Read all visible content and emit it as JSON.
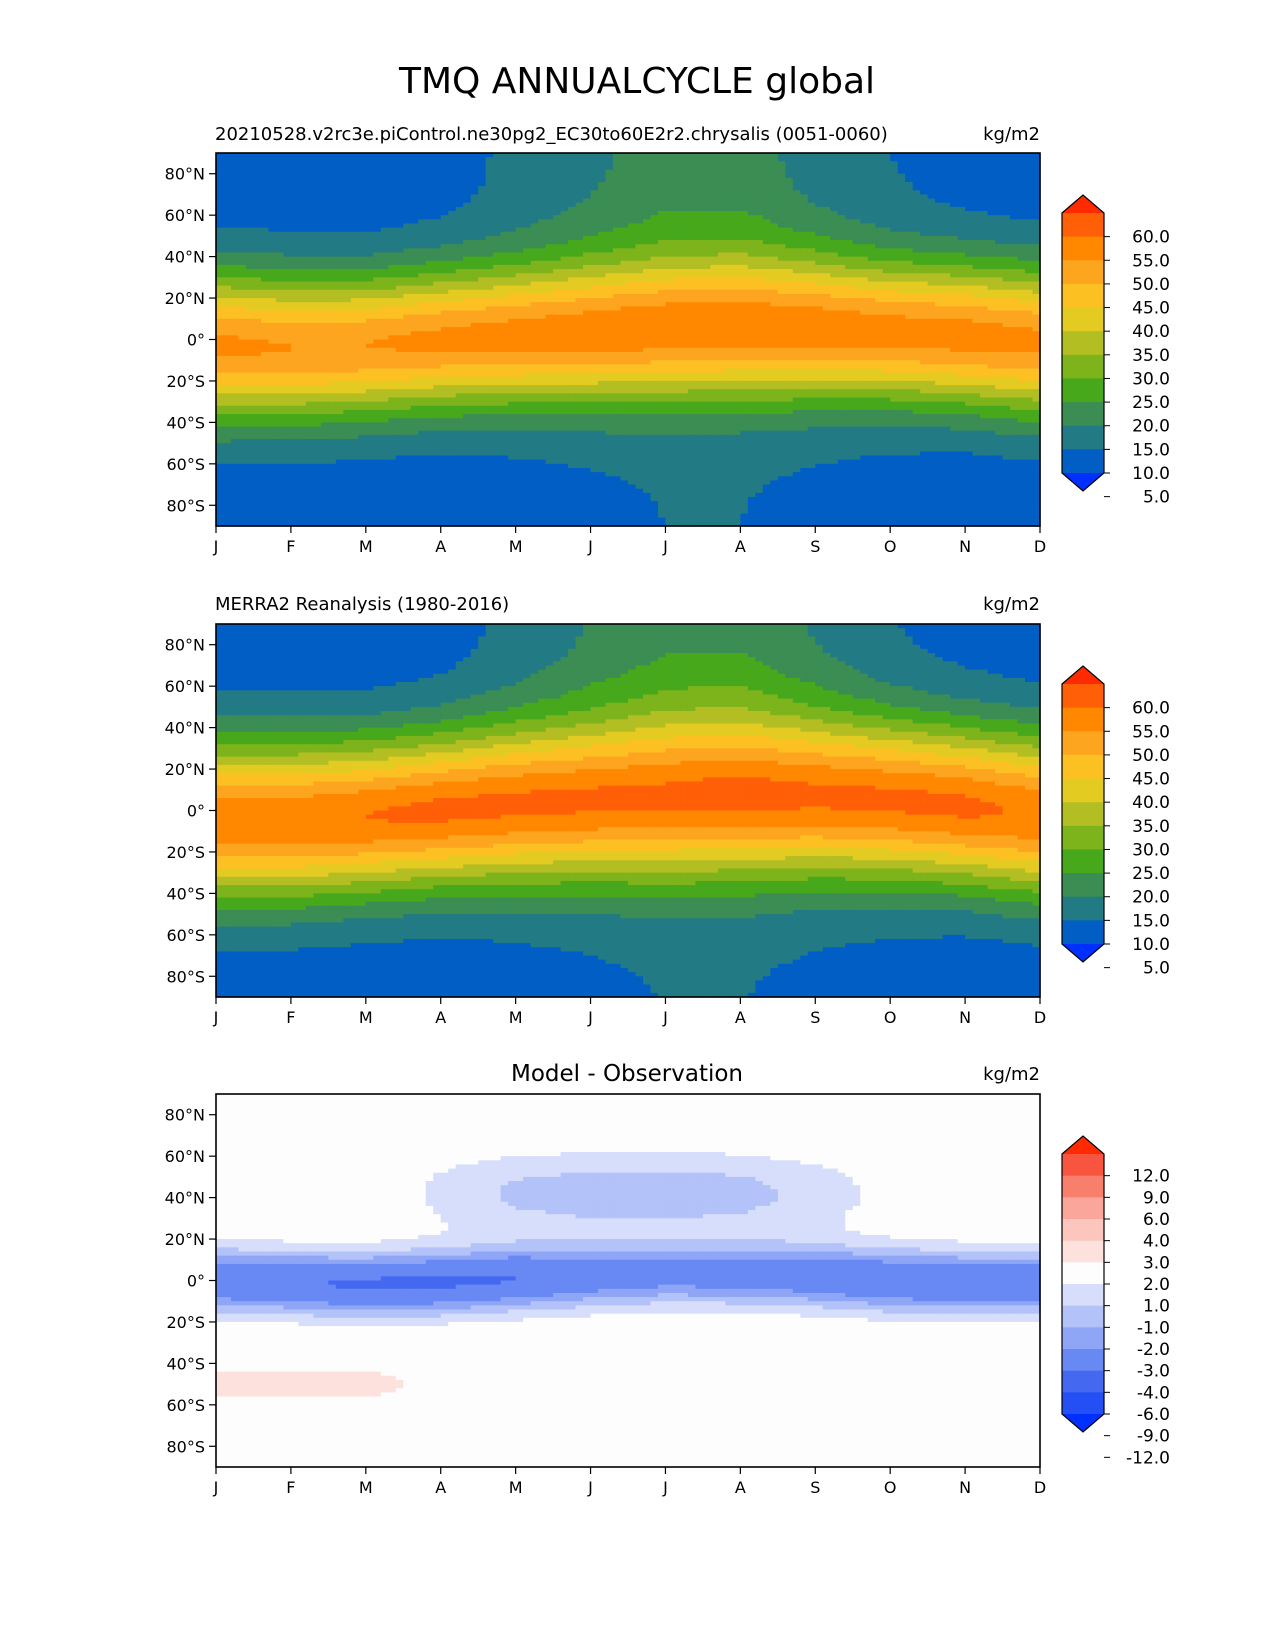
{
  "figure": {
    "title": "TMQ ANNUALCYCLE global"
  },
  "chart_data": [
    {
      "type": "heatmap",
      "panel": "model",
      "title_left": "20210528.v2rc3e.piControl.ne30pg2_EC30to60E2r2.chrysalis (0051-0060)",
      "title_center": "",
      "units": "kg/m2",
      "x": [
        "J",
        "F",
        "M",
        "A",
        "M",
        "J",
        "J",
        "A",
        "S",
        "O",
        "N",
        "D"
      ],
      "ylim": [
        -90,
        90
      ],
      "yticks": [
        80,
        60,
        40,
        20,
        0,
        -20,
        -40,
        -60,
        -80
      ],
      "ytick_labels": [
        "80°N",
        "60°N",
        "40°N",
        "20°N",
        "0°",
        "20°S",
        "40°S",
        "60°S",
        "80°S"
      ],
      "levels": [
        0,
        5,
        10,
        15,
        20,
        25,
        30,
        35,
        40,
        45,
        50,
        55,
        60
      ],
      "colorbar_labels": [
        "60.0",
        "55.0",
        "50.0",
        "45.0",
        "40.0",
        "35.0",
        "30.0",
        "25.0",
        "20.0",
        "15.0",
        "10.0",
        "5.0"
      ],
      "colors": [
        "#0030ff",
        "#005ec4",
        "#227b84",
        "#3b8d54",
        "#47a81c",
        "#7db31b",
        "#b3be22",
        "#e3cb22",
        "#fcc023",
        "#fea520",
        "#ff8800",
        "#ff5f07",
        "#ff2a00"
      ],
      "field": "climatology",
      "equator_peak": [
        46,
        45,
        45,
        46,
        47,
        48,
        49,
        49,
        48,
        47,
        47,
        46
      ],
      "itcz_lat": [
        -3,
        -4,
        -3,
        0,
        2,
        4,
        6,
        7,
        6,
        4,
        2,
        -1
      ],
      "lat_halfwidth": [
        46,
        45,
        44,
        44,
        44,
        45,
        46,
        46,
        45,
        44,
        45,
        46
      ],
      "polar_floor": [
        2,
        2,
        2,
        2,
        3,
        4,
        5,
        5,
        4,
        3,
        2,
        2
      ],
      "north_floor": [
        2,
        2,
        2,
        3,
        6,
        9,
        12,
        12,
        8,
        5,
        3,
        2
      ]
    },
    {
      "type": "heatmap",
      "panel": "obs",
      "title_left": "MERRA2 Reanalysis (1980-2016)",
      "title_center": "",
      "units": "kg/m2",
      "x": [
        "J",
        "F",
        "M",
        "A",
        "M",
        "J",
        "J",
        "A",
        "S",
        "O",
        "N",
        "D"
      ],
      "ylim": [
        -90,
        90
      ],
      "yticks": [
        80,
        60,
        40,
        20,
        0,
        -20,
        -40,
        -60,
        -80
      ],
      "ytick_labels": [
        "80°N",
        "60°N",
        "40°N",
        "20°N",
        "0°",
        "20°S",
        "40°S",
        "60°S",
        "80°S"
      ],
      "levels": [
        0,
        5,
        10,
        15,
        20,
        25,
        30,
        35,
        40,
        45,
        50,
        55,
        60
      ],
      "colorbar_labels": [
        "60.0",
        "55.0",
        "50.0",
        "45.0",
        "40.0",
        "35.0",
        "30.0",
        "25.0",
        "20.0",
        "15.0",
        "10.0",
        "5.0"
      ],
      "colors": [
        "#0030ff",
        "#005ec4",
        "#227b84",
        "#3b8d54",
        "#47a81c",
        "#7db31b",
        "#b3be22",
        "#e3cb22",
        "#fcc023",
        "#fea520",
        "#ff8800",
        "#ff5f07",
        "#ff2a00"
      ],
      "field": "climatology",
      "equator_peak": [
        48,
        49,
        50,
        51,
        51,
        51,
        51,
        52,
        51,
        51,
        51,
        49
      ],
      "itcz_lat": [
        -5,
        -5,
        -3,
        0,
        3,
        5,
        7,
        8,
        7,
        5,
        2,
        -2
      ],
      "lat_halfwidth": [
        50,
        49,
        48,
        48,
        49,
        50,
        52,
        52,
        50,
        49,
        49,
        50
      ],
      "polar_floor": [
        2,
        2,
        2,
        2,
        3,
        4,
        5,
        5,
        4,
        3,
        2,
        2
      ],
      "north_floor": [
        2,
        2,
        2,
        3,
        6,
        10,
        13,
        13,
        9,
        5,
        3,
        2
      ]
    },
    {
      "type": "heatmap",
      "panel": "diff",
      "title_left": "",
      "title_center": "Model - Observation",
      "units": "kg/m2",
      "x": [
        "J",
        "F",
        "M",
        "A",
        "M",
        "J",
        "J",
        "A",
        "S",
        "O",
        "N",
        "D"
      ],
      "ylim": [
        -90,
        90
      ],
      "yticks": [
        80,
        60,
        40,
        20,
        0,
        -20,
        -40,
        -60,
        -80
      ],
      "ytick_labels": [
        "80°N",
        "60°N",
        "40°N",
        "20°N",
        "0°",
        "20°S",
        "40°S",
        "60°S",
        "80°S"
      ],
      "levels": [
        -12,
        -9,
        -6,
        -4,
        -3,
        -2,
        -1,
        1,
        2,
        3,
        4,
        6,
        9,
        12
      ],
      "colorbar_labels": [
        "12.0",
        "9.0",
        "6.0",
        "4.0",
        "3.0",
        "2.0",
        "1.0",
        "-1.0",
        "-2.0",
        "-3.0",
        "-4.0",
        "-6.0",
        "-9.0",
        "-12.0"
      ],
      "colors": [
        "#0030ff",
        "#234ff5",
        "#4469f0",
        "#6888f3",
        "#8ea6f5",
        "#b3c2f8",
        "#d6defb",
        "#fdfdfd",
        "#fde1dd",
        "#fcc5bd",
        "#fba69a",
        "#f97f6d",
        "#f85540",
        "#ff2a00"
      ],
      "field": "difference",
      "tropic_center": [
        0,
        -1,
        -2,
        -1,
        1,
        2,
        3,
        3,
        2,
        0,
        -1,
        -1
      ],
      "tropic_amp": [
        -5.6,
        -5.8,
        -6.2,
        -6.2,
        -6.0,
        -5.0,
        -4.6,
        -4.8,
        -5.2,
        -5.6,
        -5.6,
        -5.4
      ],
      "north_amp": [
        0,
        0,
        0,
        -1.3,
        -2.2,
        -2.6,
        -2.6,
        -2.4,
        -1.6,
        -0.6,
        0,
        0
      ],
      "south_pos_amp": [
        1.5,
        1.5,
        1.4,
        0.6,
        0,
        0,
        0,
        0,
        0,
        0,
        0,
        0
      ]
    }
  ]
}
